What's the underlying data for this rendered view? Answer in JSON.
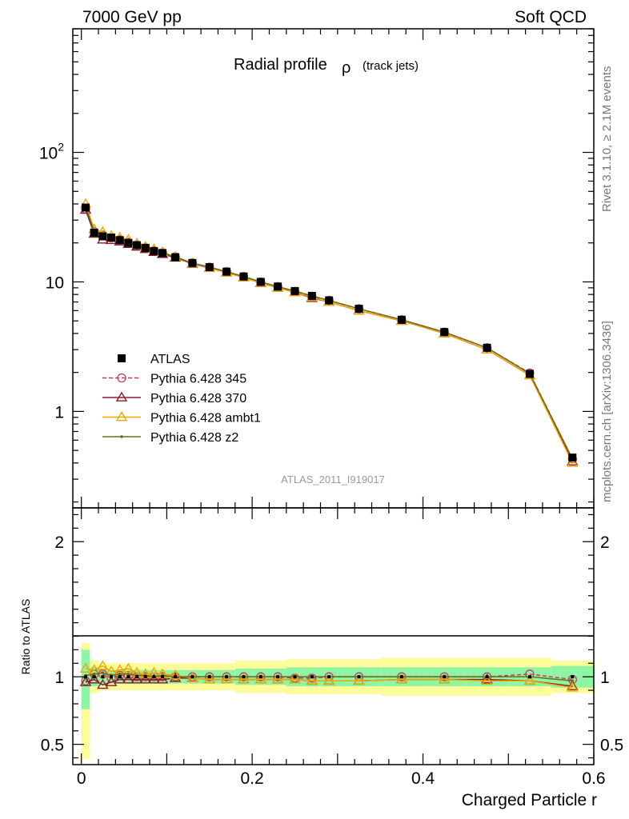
{
  "header": {
    "left": "7000 GeV pp",
    "right": "Soft QCD"
  },
  "side": {
    "rivet": "Rivet 3.1.10, ≥ 2.1M events",
    "mcplots": "mcplots.cern.ch [arXiv:1306.3436]"
  },
  "chart_data": [
    {
      "type": "line",
      "title": "Radial profile",
      "title_symbol": "ρ",
      "title_suffix": "(track jets)",
      "watermark": "ATLAS_2011_I919017",
      "xlabel": "",
      "ylabel": "",
      "yscale": "log",
      "xlim": [
        -0.01,
        0.6
      ],
      "ylim": [
        0.18,
        900
      ],
      "yticks": [
        1,
        10,
        100
      ],
      "ytick_labels": [
        "1",
        "10",
        "10²"
      ],
      "legend_position": "center-left",
      "x": [
        0.005,
        0.015,
        0.025,
        0.035,
        0.045,
        0.055,
        0.065,
        0.075,
        0.085,
        0.095,
        0.11,
        0.13,
        0.15,
        0.17,
        0.19,
        0.21,
        0.23,
        0.25,
        0.27,
        0.29,
        0.325,
        0.375,
        0.425,
        0.475,
        0.525,
        0.575
      ],
      "series": [
        {
          "name": "ATLAS",
          "color": "#000000",
          "marker": "square",
          "values": [
            37.5,
            24.0,
            22.5,
            22.0,
            21.0,
            20.0,
            19.2,
            18.3,
            17.3,
            16.7,
            15.5,
            14.0,
            13.0,
            12.0,
            11.0,
            10.0,
            9.2,
            8.5,
            7.8,
            7.2,
            6.2,
            5.1,
            4.1,
            3.1,
            1.95,
            0.44
          ]
        },
        {
          "name": "Pythia 6.428 345",
          "color": "#c0405a",
          "marker": "circle",
          "dash": true,
          "values": [
            36.5,
            24.5,
            23.0,
            21.8,
            21.2,
            20.2,
            19.3,
            18.4,
            17.4,
            16.8,
            15.6,
            14.0,
            13.0,
            12.0,
            11.0,
            10.0,
            9.2,
            8.4,
            7.7,
            7.2,
            6.2,
            5.1,
            4.1,
            3.1,
            1.98,
            0.43
          ]
        },
        {
          "name": "Pythia 6.428 370",
          "color": "#8b1a2a",
          "marker": "triangle",
          "values": [
            36.0,
            23.5,
            21.2,
            21.0,
            20.5,
            19.6,
            18.7,
            17.9,
            17.0,
            16.4,
            15.4,
            13.8,
            12.8,
            11.8,
            10.8,
            9.8,
            9.0,
            8.3,
            7.5,
            7.0,
            6.0,
            5.0,
            4.0,
            3.0,
            1.9,
            0.41
          ]
        },
        {
          "name": "Pythia 6.428 ambt1",
          "color": "#f0a800",
          "marker": "triangle",
          "values": [
            40.0,
            25.5,
            24.3,
            22.7,
            22.0,
            21.2,
            19.8,
            18.7,
            17.9,
            17.0,
            15.6,
            13.9,
            12.8,
            11.8,
            10.8,
            9.8,
            9.0,
            8.3,
            7.6,
            7.0,
            6.0,
            5.0,
            4.0,
            3.0,
            1.9,
            0.4
          ]
        },
        {
          "name": "Pythia 6.428 z2",
          "color": "#6b6b1a",
          "marker": "dot",
          "values": [
            38.0,
            24.5,
            23.2,
            22.3,
            21.4,
            20.3,
            19.4,
            18.4,
            17.4,
            16.8,
            15.6,
            14.0,
            13.0,
            12.0,
            11.0,
            10.0,
            9.2,
            8.5,
            7.8,
            7.2,
            6.2,
            5.1,
            4.1,
            3.1,
            1.96,
            0.43
          ]
        }
      ]
    },
    {
      "type": "line",
      "title": "",
      "xlabel": "Charged Particle r",
      "ylabel": "Ratio to ATLAS",
      "xlim": [
        -0.01,
        0.6
      ],
      "ylim": [
        0.35,
        2.25
      ],
      "xticks": [
        0,
        0.2,
        0.4,
        0.6
      ],
      "xtick_labels": [
        "0",
        "0.2",
        "0.4",
        "0.6"
      ],
      "yticks": [
        0.5,
        1,
        2
      ],
      "ytick_labels": [
        "0.5",
        "1",
        "2"
      ],
      "band_edges": [
        0.0,
        0.01,
        0.02,
        0.03,
        0.04,
        0.05,
        0.06,
        0.07,
        0.08,
        0.09,
        0.1,
        0.12,
        0.14,
        0.16,
        0.18,
        0.2,
        0.22,
        0.24,
        0.26,
        0.28,
        0.3,
        0.35,
        0.4,
        0.45,
        0.5,
        0.55,
        0.6
      ],
      "band_inner_lo": [
        0.76,
        0.93,
        0.94,
        0.95,
        0.95,
        0.95,
        0.95,
        0.95,
        0.95,
        0.95,
        0.95,
        0.95,
        0.95,
        0.95,
        0.94,
        0.94,
        0.94,
        0.93,
        0.93,
        0.93,
        0.93,
        0.93,
        0.93,
        0.93,
        0.93,
        0.92
      ],
      "band_inner_hi": [
        1.2,
        1.07,
        1.06,
        1.05,
        1.05,
        1.05,
        1.05,
        1.05,
        1.05,
        1.05,
        1.05,
        1.05,
        1.05,
        1.05,
        1.06,
        1.06,
        1.06,
        1.07,
        1.07,
        1.07,
        1.07,
        1.07,
        1.07,
        1.07,
        1.07,
        1.08
      ],
      "band_outer_lo": [
        0.39,
        0.88,
        0.9,
        0.9,
        0.9,
        0.9,
        0.9,
        0.9,
        0.9,
        0.9,
        0.9,
        0.9,
        0.9,
        0.9,
        0.88,
        0.88,
        0.88,
        0.87,
        0.87,
        0.87,
        0.87,
        0.86,
        0.86,
        0.86,
        0.86,
        0.88
      ],
      "band_outer_hi": [
        1.25,
        1.12,
        1.1,
        1.1,
        1.1,
        1.1,
        1.1,
        1.1,
        1.1,
        1.1,
        1.1,
        1.1,
        1.1,
        1.1,
        1.12,
        1.12,
        1.12,
        1.13,
        1.13,
        1.13,
        1.13,
        1.14,
        1.14,
        1.14,
        1.14,
        1.12
      ],
      "x": [
        0.005,
        0.015,
        0.025,
        0.035,
        0.045,
        0.055,
        0.065,
        0.075,
        0.085,
        0.095,
        0.11,
        0.13,
        0.15,
        0.17,
        0.19,
        0.21,
        0.23,
        0.25,
        0.27,
        0.29,
        0.325,
        0.375,
        0.425,
        0.475,
        0.525,
        0.575
      ],
      "series": [
        {
          "name": "Pythia 6.428 345",
          "color": "#c0405a",
          "marker": "circle",
          "dash": true,
          "values": [
            0.97,
            1.02,
            1.02,
            0.99,
            1.01,
            1.01,
            1.0,
            1.0,
            1.0,
            1.0,
            1.0,
            1.0,
            1.0,
            1.0,
            1.0,
            1.0,
            1.0,
            0.99,
            0.99,
            1.0,
            1.0,
            1.0,
            1.0,
            1.0,
            1.02,
            0.98
          ]
        },
        {
          "name": "Pythia 6.428 370",
          "color": "#8b1a2a",
          "marker": "triangle",
          "values": [
            0.96,
            0.98,
            0.94,
            0.96,
            0.98,
            0.98,
            0.98,
            0.98,
            0.98,
            0.98,
            0.99,
            0.99,
            0.98,
            0.98,
            0.98,
            0.98,
            0.98,
            0.98,
            0.97,
            0.97,
            0.97,
            0.98,
            0.98,
            0.98,
            0.97,
            0.93
          ]
        },
        {
          "name": "Pythia 6.428 ambt1",
          "color": "#f0a800",
          "marker": "triangle",
          "values": [
            1.06,
            1.05,
            1.08,
            1.04,
            1.05,
            1.06,
            1.03,
            1.02,
            1.03,
            1.02,
            1.01,
            0.99,
            0.98,
            0.98,
            0.98,
            0.98,
            0.98,
            0.98,
            0.97,
            0.97,
            0.97,
            0.98,
            0.98,
            0.97,
            0.97,
            0.92
          ]
        },
        {
          "name": "Pythia 6.428 z2",
          "color": "#6b6b1a",
          "marker": "dot",
          "values": [
            1.01,
            1.02,
            1.03,
            1.01,
            1.02,
            1.02,
            1.01,
            1.01,
            1.0,
            1.01,
            1.0,
            1.0,
            1.0,
            1.0,
            1.0,
            1.0,
            1.0,
            1.0,
            1.0,
            1.0,
            1.0,
            1.0,
            1.0,
            1.0,
            1.0,
            0.97
          ]
        }
      ]
    }
  ]
}
